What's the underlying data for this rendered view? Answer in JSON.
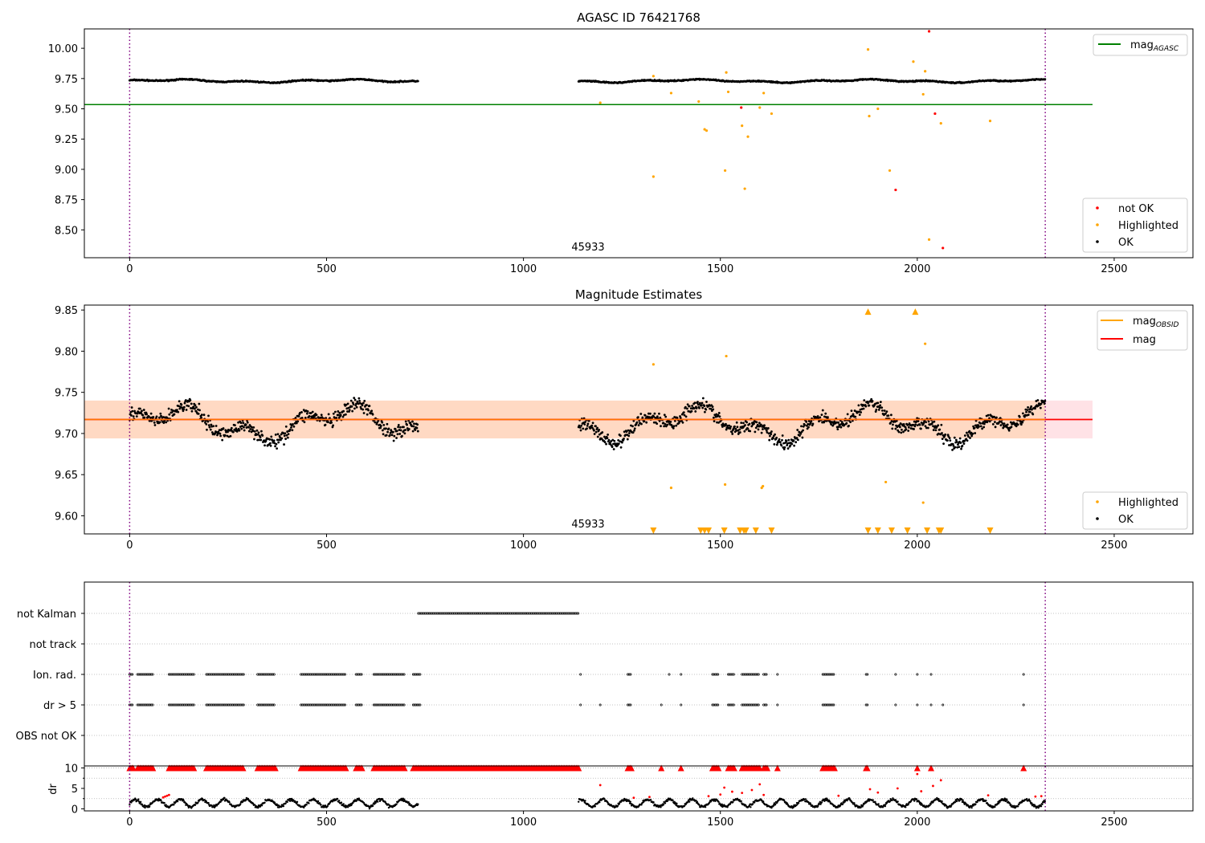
{
  "chart_data": [
    {
      "type": "scatter",
      "title": "AGASC ID 76421768",
      "annotation": "45933",
      "xlim": [
        -115,
        2700
      ],
      "ylim": [
        8.27,
        10.16
      ],
      "xticks": [
        0,
        500,
        1000,
        1500,
        2000,
        2500
      ],
      "yticks": [
        8.5,
        8.75,
        9.0,
        9.25,
        9.5,
        9.75,
        10.0
      ],
      "vlines": [
        0,
        2325
      ],
      "lines": [
        {
          "name": "mag",
          "sub": "AGASC",
          "color": "#008000",
          "y": 9.535,
          "x": [
            -115,
            2445
          ]
        }
      ],
      "series": [
        {
          "name": "not OK",
          "color": "#ff0000",
          "points": [
            [
              1553,
              9.51
            ],
            [
              1945,
              8.83
            ],
            [
              2030,
              10.14
            ],
            [
              2045,
              9.46
            ],
            [
              2065,
              8.35
            ]
          ]
        },
        {
          "name": "Highlighted",
          "color": "#ffa500",
          "points": [
            [
              1195,
              9.55
            ],
            [
              1330,
              9.77
            ],
            [
              1330,
              8.94
            ],
            [
              1375,
              9.63
            ],
            [
              1445,
              9.56
            ],
            [
              1460,
              9.33
            ],
            [
              1465,
              9.32
            ],
            [
              1512,
              8.99
            ],
            [
              1515,
              9.8
            ],
            [
              1520,
              9.64
            ],
            [
              1555,
              9.36
            ],
            [
              1562,
              8.84
            ],
            [
              1570,
              9.27
            ],
            [
              1600,
              9.51
            ],
            [
              1610,
              9.63
            ],
            [
              1630,
              9.46
            ],
            [
              1875,
              9.99
            ],
            [
              1878,
              9.44
            ],
            [
              1900,
              9.5
            ],
            [
              1930,
              8.99
            ],
            [
              1990,
              9.89
            ],
            [
              2015,
              9.62
            ],
            [
              2020,
              9.81
            ],
            [
              2030,
              8.42
            ],
            [
              2060,
              9.38
            ],
            [
              2185,
              9.4
            ]
          ]
        },
        {
          "name": "OK",
          "color": "#000000",
          "segments": [
            [
              0,
              733
            ],
            [
              1140,
              2325
            ]
          ],
          "base": 9.71,
          "amp": 0.025,
          "noise": 0.012
        }
      ],
      "legend_lines": [
        {
          "label": "mag",
          "sub": "AGASC",
          "color": "#008000"
        }
      ],
      "legend_points": [
        {
          "label": "not OK",
          "color": "#ff0000"
        },
        {
          "label": "Highlighted",
          "color": "#ffa500"
        },
        {
          "label": "OK",
          "color": "#000000"
        }
      ]
    },
    {
      "type": "scatter",
      "title": "Magnitude Estimates",
      "annotation": "45933",
      "xlim": [
        -115,
        2700
      ],
      "ylim": [
        9.578,
        9.856
      ],
      "xticks": [
        0,
        500,
        1000,
        1500,
        2000,
        2500
      ],
      "yticks": [
        9.6,
        9.65,
        9.7,
        9.75,
        9.8,
        9.85
      ],
      "vlines": [
        0,
        2325
      ],
      "band": {
        "y0": 9.694,
        "y1": 9.74,
        "x": [
          -115,
          2445
        ]
      },
      "lines": [
        {
          "name": "mag",
          "color": "#ff0000",
          "y": 9.717,
          "x": [
            -115,
            2445
          ]
        }
      ],
      "series": [
        {
          "name": "Highlighted",
          "color": "#ffa500",
          "points": [
            [
              1330,
              9.784
            ],
            [
              1375,
              9.634
            ],
            [
              1512,
              9.638
            ],
            [
              1515,
              9.794
            ],
            [
              1605,
              9.634
            ],
            [
              1608,
              9.636
            ],
            [
              1920,
              9.641
            ],
            [
              2015,
              9.616
            ],
            [
              2020,
              9.809
            ]
          ]
        },
        {
          "name": "OK",
          "color": "#000000",
          "segments": [
            [
              0,
              733
            ],
            [
              1140,
              2325
            ]
          ],
          "base": 9.712,
          "amp": 0.025,
          "noise": 0.012
        },
        {
          "name": "Highlighted",
          "color": "#ffa500",
          "marker": "tri-up",
          "points": [
            [
              1875,
              9.851
            ],
            [
              1995,
              9.851
            ]
          ]
        },
        {
          "name": "Highlighted",
          "color": "#ffa500",
          "marker": "tri-down",
          "points": [
            [
              1330,
              9.58
            ],
            [
              1450,
              9.58
            ],
            [
              1460,
              9.58
            ],
            [
              1470,
              9.58
            ],
            [
              1510,
              9.58
            ],
            [
              1550,
              9.58
            ],
            [
              1560,
              9.58
            ],
            [
              1565,
              9.58
            ],
            [
              1590,
              9.58
            ],
            [
              1630,
              9.58
            ],
            [
              1875,
              9.58
            ],
            [
              1900,
              9.58
            ],
            [
              1935,
              9.58
            ],
            [
              1975,
              9.58
            ],
            [
              2025,
              9.58
            ],
            [
              2055,
              9.58
            ],
            [
              2060,
              9.58
            ],
            [
              2185,
              9.58
            ]
          ]
        }
      ],
      "legend_lines": [
        {
          "label": "mag",
          "sub": "OBSID",
          "color": "#ffa500"
        },
        {
          "label": "mag",
          "sub": "",
          "color": "#ff0000"
        }
      ],
      "legend_points": [
        {
          "label": "Highlighted",
          "color": "#ffa500"
        },
        {
          "label": "OK",
          "color": "#000000"
        }
      ]
    },
    {
      "type": "scatter",
      "title": "",
      "xlim": [
        -115,
        2700
      ],
      "vlines": [
        0,
        2325
      ],
      "rows": [
        {
          "label": "not Kalman",
          "segments": [
            [
              733,
              1140
            ]
          ]
        },
        {
          "label": "not track",
          "segments": []
        },
        {
          "label": "Ion. rad.",
          "segments": [
            [
              0,
              10
            ],
            [
              20,
              60
            ],
            [
              100,
              165
            ],
            [
              195,
              290
            ],
            [
              325,
              370
            ],
            [
              435,
              550
            ],
            [
              575,
              590
            ],
            [
              620,
              700
            ],
            [
              720,
              740
            ],
            [
              1145,
              1146
            ],
            [
              1265,
              1275
            ],
            [
              1370,
              1371
            ],
            [
              1400,
              1401
            ],
            [
              1480,
              1495
            ],
            [
              1520,
              1535
            ],
            [
              1555,
              1600
            ],
            [
              1610,
              1620
            ],
            [
              1645,
              1646
            ],
            [
              1760,
              1790
            ],
            [
              1870,
              1875
            ],
            [
              1945,
              1946
            ],
            [
              2000,
              2001
            ],
            [
              2035,
              2036
            ],
            [
              2270,
              2271
            ]
          ]
        },
        {
          "label": "dr > 5",
          "segments": [
            [
              0,
              10
            ],
            [
              20,
              60
            ],
            [
              100,
              165
            ],
            [
              195,
              290
            ],
            [
              325,
              370
            ],
            [
              435,
              550
            ],
            [
              575,
              590
            ],
            [
              620,
              700
            ],
            [
              720,
              740
            ],
            [
              1145,
              1146
            ],
            [
              1195,
              1196
            ],
            [
              1265,
              1275
            ],
            [
              1350,
              1351
            ],
            [
              1400,
              1401
            ],
            [
              1480,
              1495
            ],
            [
              1520,
              1535
            ],
            [
              1555,
              1600
            ],
            [
              1610,
              1620
            ],
            [
              1645,
              1646
            ],
            [
              1760,
              1790
            ],
            [
              1870,
              1875
            ],
            [
              1945,
              1946
            ],
            [
              2000,
              2001
            ],
            [
              2035,
              2036
            ],
            [
              2065,
              2066
            ],
            [
              2270,
              2271
            ]
          ]
        },
        {
          "label": "OBS not OK",
          "segments": []
        }
      ],
      "dr": {
        "ylabel": "dr",
        "ylim": [
          -0.5,
          10.5
        ],
        "yticks": [
          0,
          5,
          10
        ],
        "ylines": [
          2.5,
          7.5
        ],
        "capped_value": 10,
        "capped_segments": [
          [
            0,
            10
          ],
          [
            20,
            60
          ],
          [
            100,
            165
          ],
          [
            195,
            290
          ],
          [
            325,
            370
          ],
          [
            435,
            550
          ],
          [
            575,
            590
          ],
          [
            620,
            700
          ],
          [
            720,
            1140
          ],
          [
            1265,
            1275
          ],
          [
            1350,
            1351
          ],
          [
            1400,
            1401
          ],
          [
            1480,
            1495
          ],
          [
            1520,
            1535
          ],
          [
            1555,
            1600
          ],
          [
            1610,
            1620
          ],
          [
            1645,
            1646
          ],
          [
            1760,
            1790
          ],
          [
            1870,
            1875
          ],
          [
            2000,
            2001
          ],
          [
            2035,
            2036
          ],
          [
            2270,
            2271
          ]
        ],
        "ok_segments": [
          [
            0,
            733
          ],
          [
            1140,
            2325
          ]
        ],
        "red_points": [
          [
            85,
            2.8
          ],
          [
            90,
            3.0
          ],
          [
            95,
            3.2
          ],
          [
            100,
            3.4
          ],
          [
            1195,
            5.8
          ],
          [
            1280,
            2.7
          ],
          [
            1320,
            2.9
          ],
          [
            1470,
            3.1
          ],
          [
            1500,
            3.5
          ],
          [
            1510,
            5.2
          ],
          [
            1530,
            4.2
          ],
          [
            1555,
            3.9
          ],
          [
            1580,
            4.6
          ],
          [
            1600,
            6.0
          ],
          [
            1610,
            3.4
          ],
          [
            1800,
            3.2
          ],
          [
            1880,
            4.8
          ],
          [
            1900,
            4.0
          ],
          [
            1950,
            5.0
          ],
          [
            2000,
            8.5
          ],
          [
            2010,
            4.3
          ],
          [
            2040,
            5.6
          ],
          [
            2060,
            7.0
          ],
          [
            2180,
            3.3
          ],
          [
            2300,
            3.0
          ],
          [
            2315,
            3.1
          ]
        ]
      }
    }
  ]
}
